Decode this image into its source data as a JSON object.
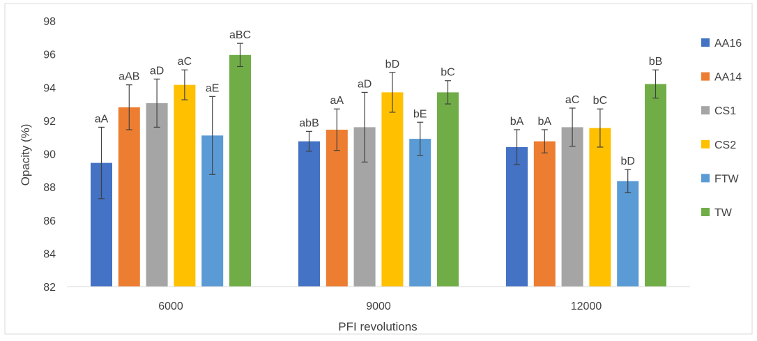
{
  "chart_data": {
    "type": "bar",
    "xlabel": "PFI revolutions",
    "ylabel": "Opacity (%)",
    "ylim": [
      82,
      98
    ],
    "yticks": [
      82,
      84,
      86,
      88,
      90,
      92,
      94,
      96,
      98
    ],
    "grid": false,
    "legend_position": "right",
    "categories": [
      "6000",
      "9000",
      "12000"
    ],
    "series": [
      {
        "name": "AA16",
        "color": "#4472C4",
        "values": [
          89.45,
          90.75,
          90.4
        ],
        "errors": [
          2.15,
          0.6,
          1.05
        ],
        "labels": [
          "aA",
          "abB",
          "bA"
        ]
      },
      {
        "name": "AA14",
        "color": "#ED7D31",
        "values": [
          92.8,
          91.45,
          90.75
        ],
        "errors": [
          1.35,
          1.25,
          0.7
        ],
        "labels": [
          "aAB",
          "aA",
          "bA"
        ]
      },
      {
        "name": "CS1",
        "color": "#A5A5A5",
        "values": [
          93.05,
          91.6,
          91.6
        ],
        "errors": [
          1.45,
          2.1,
          1.15
        ],
        "labels": [
          "aD",
          "aD",
          "aC"
        ]
      },
      {
        "name": "CS2",
        "color": "#FFC000",
        "values": [
          94.15,
          93.7,
          91.55
        ],
        "errors": [
          0.9,
          1.2,
          1.15
        ],
        "labels": [
          "aC",
          "bD",
          "bC"
        ]
      },
      {
        "name": "FTW",
        "color": "#5B9BD5",
        "values": [
          91.1,
          90.9,
          88.35
        ],
        "errors": [
          2.35,
          1.0,
          0.7
        ],
        "labels": [
          "aE",
          "bE",
          "bD"
        ]
      },
      {
        "name": "TW",
        "color": "#70AD47",
        "values": [
          95.95,
          93.7,
          94.2
        ],
        "errors": [
          0.7,
          0.7,
          0.85
        ],
        "labels": [
          "aBC",
          "bC",
          "bB"
        ]
      }
    ]
  }
}
